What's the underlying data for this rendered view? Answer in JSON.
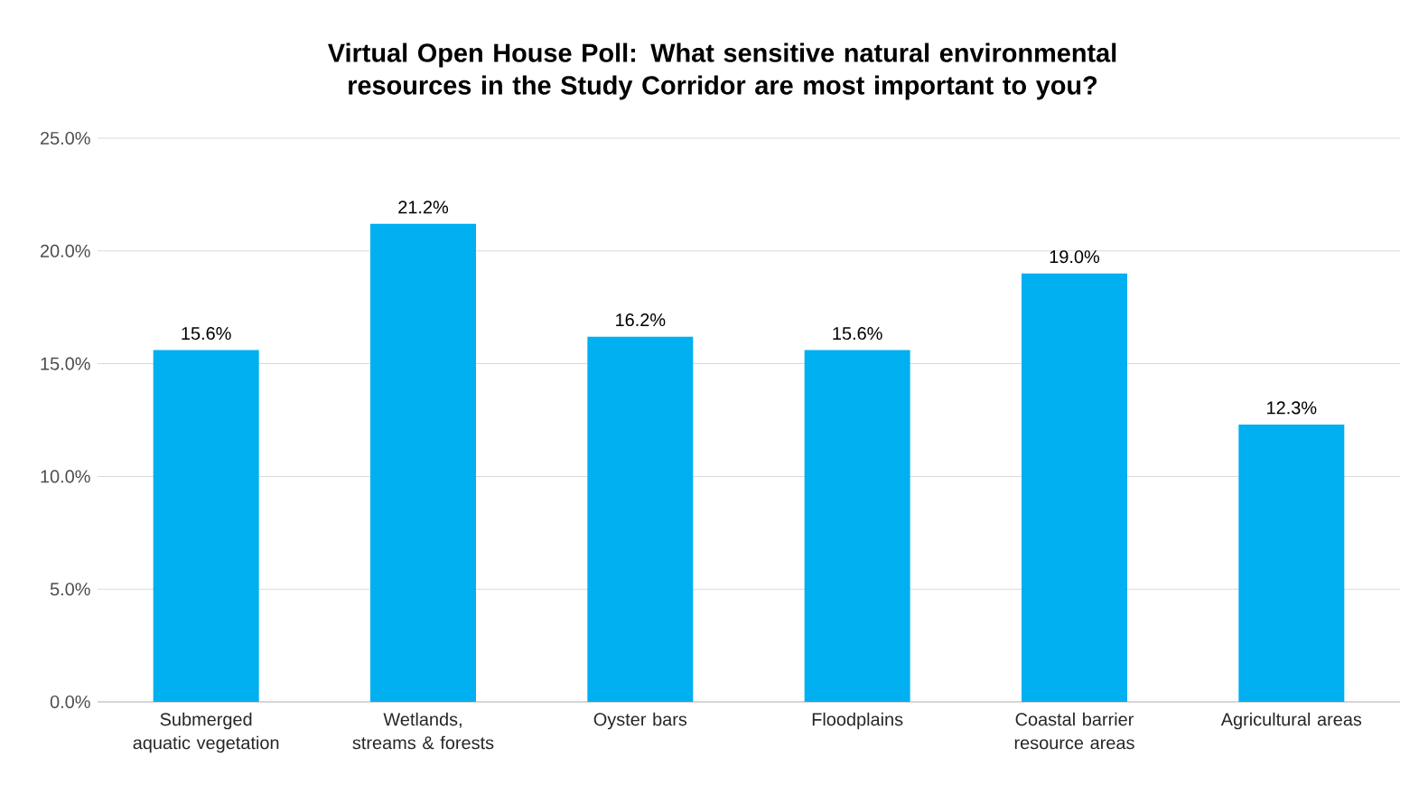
{
  "chart_data": {
    "type": "bar",
    "title": "Virtual Open House Poll: What sensitive natural environmental resources in the Study Corridor are most important to you?",
    "categories": [
      "Submerged aquatic vegetation",
      "Wetlands, streams & forests",
      "Oyster bars",
      "Floodplains",
      "Coastal barrier resource areas",
      "Agricultural areas"
    ],
    "values": [
      15.6,
      21.2,
      16.2,
      15.6,
      19.0,
      12.3
    ],
    "value_labels": [
      "15.6%",
      "21.2%",
      "16.2%",
      "15.6%",
      "19.0%",
      "12.3%"
    ],
    "color": "#00b0f0",
    "ylim": [
      0,
      25
    ],
    "yticks": [
      {
        "value": 0,
        "label": "0.0%"
      },
      {
        "value": 5,
        "label": "5.0%"
      },
      {
        "value": 10,
        "label": "10.0%"
      },
      {
        "value": 15,
        "label": "15.0%"
      },
      {
        "value": 20,
        "label": "20.0%"
      },
      {
        "value": 25,
        "label": "25.0%"
      }
    ],
    "grid": "y"
  }
}
